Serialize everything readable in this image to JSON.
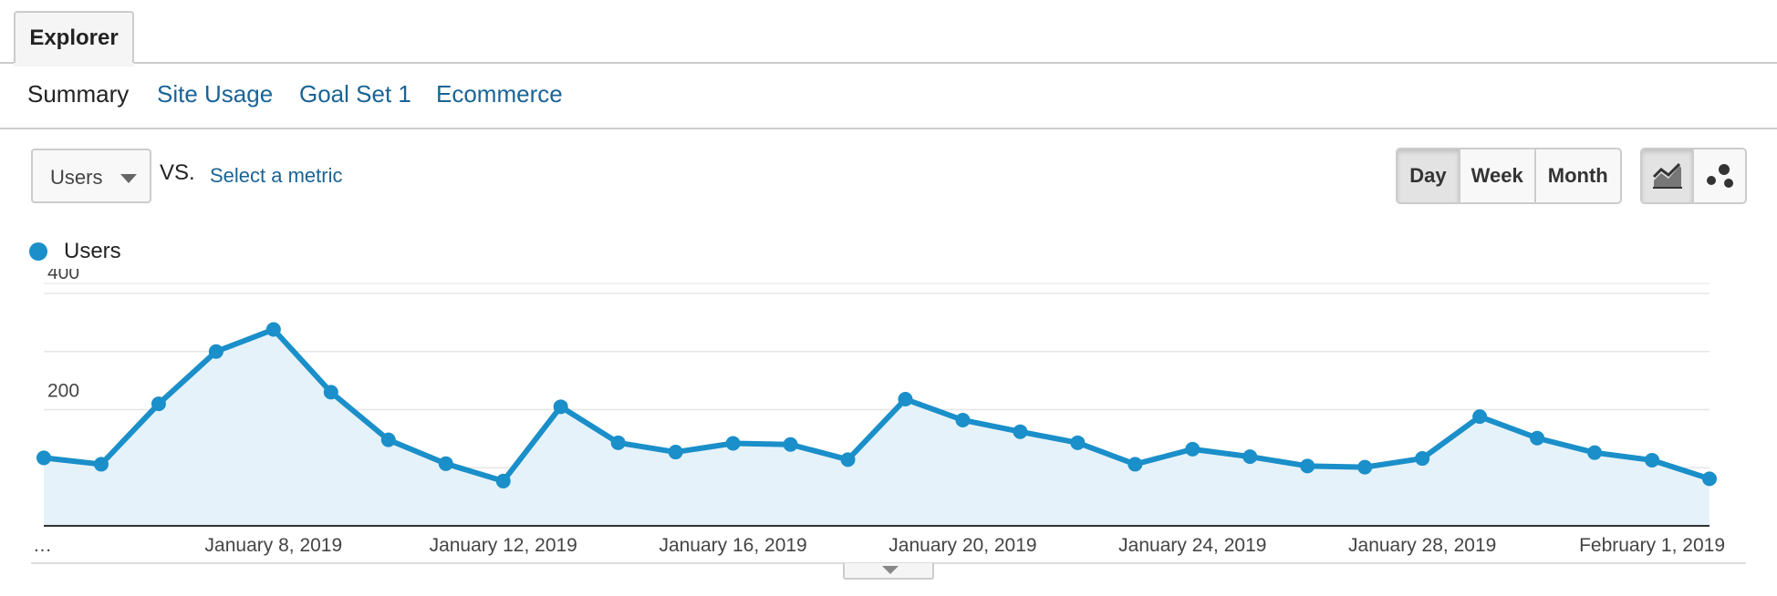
{
  "tabs": {
    "active": "Explorer"
  },
  "subnav": {
    "summary": "Summary",
    "site_usage": "Site Usage",
    "goal_set": "Goal Set 1",
    "ecommerce": "Ecommerce"
  },
  "toolbar": {
    "metric": "Users",
    "vs": "VS.",
    "select_metric": "Select a metric",
    "periods": [
      "Day",
      "Week",
      "Month"
    ],
    "active_period": "Day",
    "chart_type_icons": [
      "line-chart-icon",
      "motion-chart-icon"
    ]
  },
  "colors": {
    "series": "#1a8fc9",
    "fill": "#e6f2fa",
    "link": "#1a6496"
  },
  "chart_data": {
    "type": "area",
    "title": "",
    "xlabel": "",
    "ylabel": "",
    "x": [
      "January 4, 2019",
      "January 5, 2019",
      "January 6, 2019",
      "January 7, 2019",
      "January 8, 2019",
      "January 9, 2019",
      "January 10, 2019",
      "January 11, 2019",
      "January 12, 2019",
      "January 13, 2019",
      "January 14, 2019",
      "January 15, 2019",
      "January 16, 2019",
      "January 17, 2019",
      "January 18, 2019",
      "January 19, 2019",
      "January 20, 2019",
      "January 21, 2019",
      "January 22, 2019",
      "January 23, 2019",
      "January 24, 2019",
      "January 25, 2019",
      "January 26, 2019",
      "January 27, 2019",
      "January 28, 2019",
      "January 29, 2019",
      "January 30, 2019",
      "January 31, 2019",
      "February 1, 2019",
      "February 2, 2019"
    ],
    "x_tick_labels": [
      "…",
      "January 8, 2019",
      "January 12, 2019",
      "January 16, 2019",
      "January 20, 2019",
      "January 24, 2019",
      "January 28, 2019",
      "February 1, 2019"
    ],
    "x_tick_indices": [
      0,
      4,
      8,
      12,
      16,
      20,
      24,
      28
    ],
    "series": [
      {
        "name": "Users",
        "values": [
          117,
          106,
          210,
          300,
          338,
          230,
          148,
          107,
          77,
          205,
          143,
          127,
          142,
          140,
          114,
          218,
          182,
          162,
          143,
          106,
          132,
          119,
          103,
          101,
          116,
          188,
          151,
          126,
          113,
          81
        ]
      }
    ],
    "yticks": [
      200,
      400
    ],
    "ylim": [
      0,
      400
    ],
    "grid": true,
    "legend": "top-left"
  }
}
